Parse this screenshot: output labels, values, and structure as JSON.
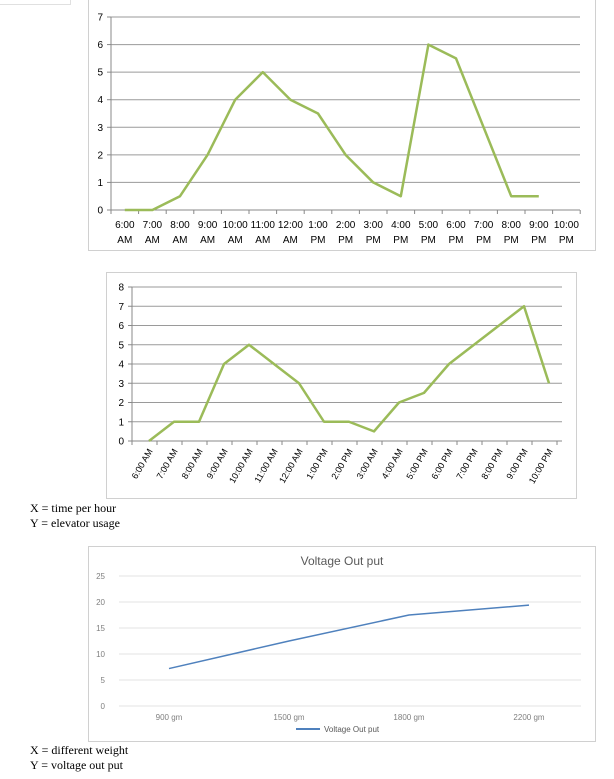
{
  "chart_data": [
    {
      "type": "line",
      "categories": [
        "6:00 AM",
        "7:00 AM",
        "8:00 AM",
        "9:00 AM",
        "10:00 AM",
        "11:00 AM",
        "12:00 AM",
        "1:00 PM",
        "2:00 PM",
        "3:00 PM",
        "4:00 PM",
        "5:00 PM",
        "6:00 PM",
        "7:00 PM",
        "8:00 PM",
        "9:00 PM",
        "10:00 PM"
      ],
      "category_lines": [
        [
          "6:00",
          "AM"
        ],
        [
          "7:00",
          "AM"
        ],
        [
          "8:00",
          "AM"
        ],
        [
          "9:00",
          "AM"
        ],
        [
          "10:00",
          "AM"
        ],
        [
          "11:00",
          "AM"
        ],
        [
          "12:00",
          "AM"
        ],
        [
          "1:00",
          "PM"
        ],
        [
          "2:00",
          "PM"
        ],
        [
          "3:00",
          "PM"
        ],
        [
          "4:00",
          "PM"
        ],
        [
          "5:00",
          "PM"
        ],
        [
          "6:00",
          "PM"
        ],
        [
          "7:00",
          "PM"
        ],
        [
          "8:00",
          "PM"
        ],
        [
          "9:00",
          "PM"
        ],
        [
          "10:00",
          "PM"
        ]
      ],
      "series": [
        {
          "values": [
            0,
            0,
            0.5,
            2,
            4,
            5,
            4,
            3.5,
            2,
            1,
            0.5,
            6,
            5.5,
            3,
            0.5,
            0.5,
            null
          ]
        }
      ],
      "ylim": [
        0,
        7
      ],
      "yticks": [
        "0",
        "1",
        "2",
        "3",
        "4",
        "5",
        "6",
        "7"
      ],
      "grid": true,
      "color": "#9bbb59"
    },
    {
      "type": "line",
      "categories": [
        "6:00 AM",
        "7:00 AM",
        "8:00 AM",
        "9:00 AM",
        "10:00 AM",
        "11:00 AM",
        "12:00 AM",
        "1:00 PM",
        "2:00 PM",
        "3:00 AM",
        "4:00 AM",
        "5:00 PM",
        "6:00 PM",
        "7:00 PM",
        "8:00 PM",
        "9:00 PM",
        "10:00 PM"
      ],
      "series": [
        {
          "values": [
            0,
            1,
            1,
            4,
            5,
            4,
            3,
            1,
            1,
            0.5,
            2,
            2.5,
            4,
            5,
            6,
            7,
            3
          ]
        }
      ],
      "ylim": [
        0,
        8
      ],
      "yticks": [
        "0",
        "1",
        "2",
        "3",
        "4",
        "5",
        "6",
        "7",
        "8"
      ],
      "grid": true,
      "color": "#9bbb59"
    },
    {
      "type": "line",
      "title": "Voltage Out put",
      "categories": [
        "900 gm",
        "1500 gm",
        "1800 gm",
        "2200 gm"
      ],
      "series": [
        {
          "name": "Voltage Out put",
          "values": [
            7.2,
            12.5,
            17.5,
            19.4
          ]
        }
      ],
      "ylim": [
        0,
        25
      ],
      "yticks": [
        "0",
        "5",
        "10",
        "15",
        "20",
        "25"
      ],
      "grid": true,
      "legend": "bottom",
      "color": "#4f81bd"
    }
  ],
  "captions": {
    "chart2_x": "X = time per hour",
    "chart2_y": "Y = elevator usage",
    "chart3_x": "X = different weight",
    "chart3_y": "Y = voltage out put"
  }
}
